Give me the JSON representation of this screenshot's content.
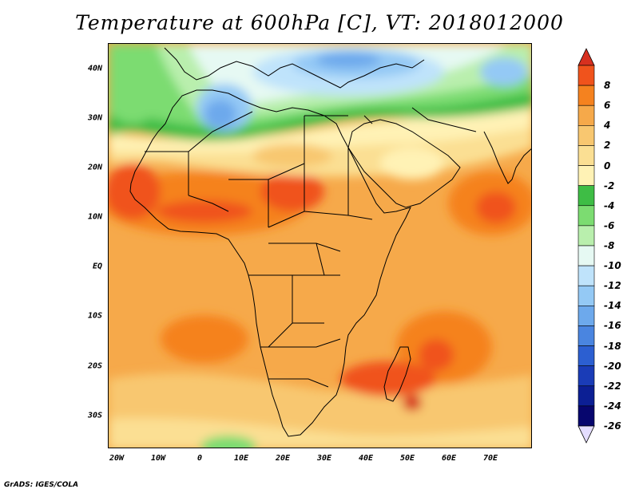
{
  "title": "Temperature at 600hPa [C], VT: 2018012000",
  "credit": "GrADS: IGES/COLA",
  "map": {
    "lat_labels": [
      "40N",
      "30N",
      "20N",
      "10N",
      "EQ",
      "10S",
      "20S",
      "30S"
    ],
    "lon_labels": [
      "20W",
      "10W",
      "0",
      "10E",
      "20E",
      "30E",
      "40E",
      "50E",
      "60E",
      "70E"
    ],
    "lat_range": [
      -36,
      45
    ],
    "lon_range": [
      -22,
      80
    ]
  },
  "colorbar": {
    "labels": [
      "8",
      "6",
      "4",
      "2",
      "0",
      "-2",
      "-4",
      "-6",
      "-8",
      "-10",
      "-12",
      "-14",
      "-16",
      "-18",
      "-20",
      "-22",
      "-24",
      "-26"
    ],
    "colors": [
      "#d7301f",
      "#f0531c",
      "#f5821f",
      "#f6a94a",
      "#f8c770",
      "#fbdf93",
      "#fff2b5",
      "#3ebd45",
      "#7cdc71",
      "#b9efad",
      "#e6f9f3",
      "#bfe3fb",
      "#94c9f5",
      "#6da9ec",
      "#4a85e0",
      "#2c5fd1",
      "#1a3cb7",
      "#0c1f94",
      "#07066e",
      "#e4ddff"
    ]
  }
}
